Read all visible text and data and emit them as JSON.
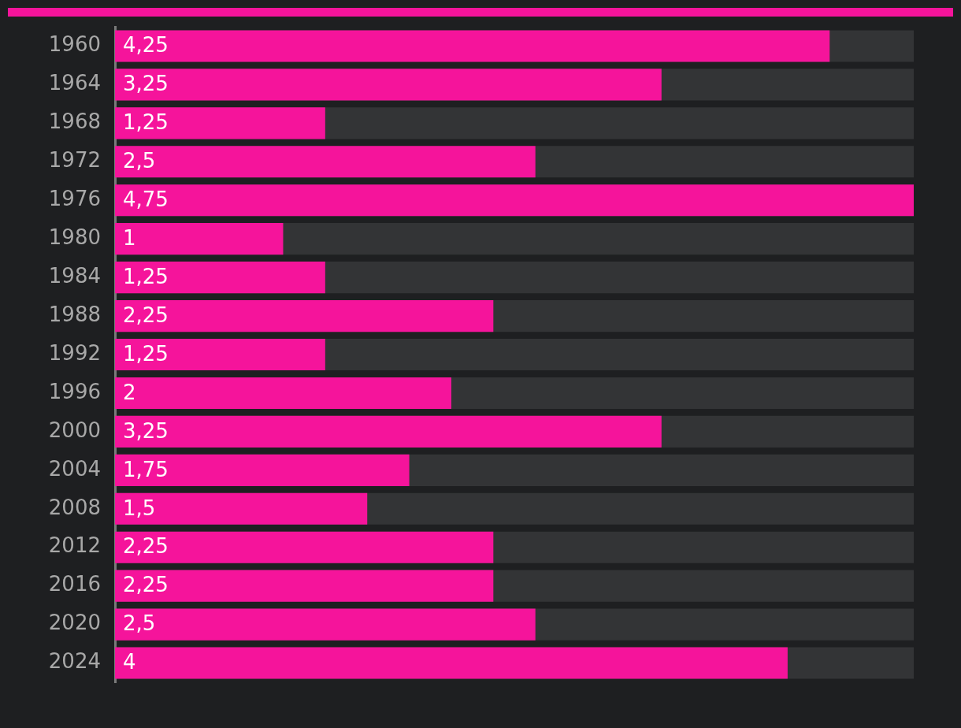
{
  "chart_data": {
    "type": "bar",
    "orientation": "horizontal",
    "categories": [
      "1960",
      "1964",
      "1968",
      "1972",
      "1976",
      "1980",
      "1984",
      "1988",
      "1992",
      "1996",
      "2000",
      "2004",
      "2008",
      "2012",
      "2016",
      "2020",
      "2024"
    ],
    "values": [
      4.25,
      3.25,
      1.25,
      2.5,
      4.75,
      1,
      1.25,
      2.25,
      1.25,
      2,
      3.25,
      1.75,
      1.5,
      2.25,
      2.25,
      2.5,
      4
    ],
    "value_labels": [
      "4,25",
      "3,25",
      "1,25",
      "2,5",
      "4,75",
      "1",
      "1,25",
      "2,25",
      "1,25",
      "2",
      "3,25",
      "1,75",
      "1,5",
      "2,25",
      "2,25",
      "2,5",
      "4"
    ],
    "color": "#f5149b"
  }
}
